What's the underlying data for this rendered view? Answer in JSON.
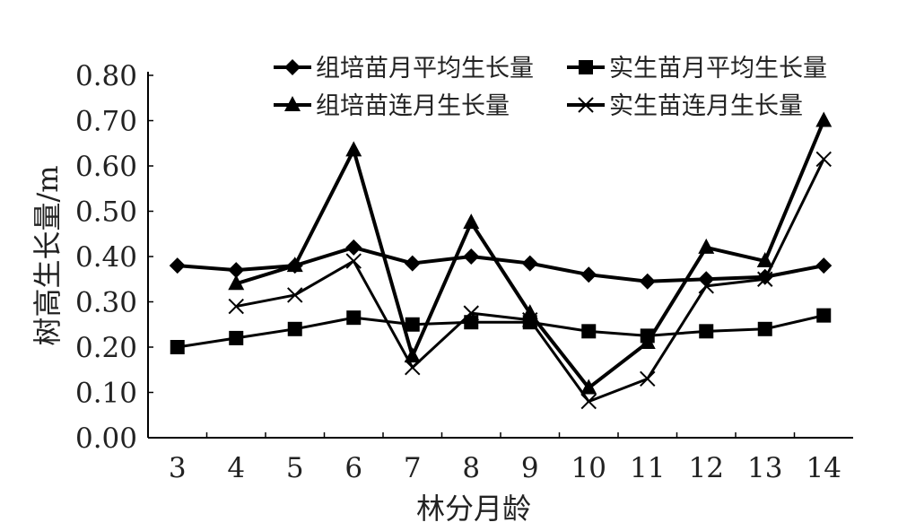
{
  "chart_data": {
    "type": "line",
    "title": "",
    "xlabel": "林分月龄",
    "ylabel": "树高生长量/m",
    "categories": [
      "3",
      "4",
      "5",
      "6",
      "7",
      "8",
      "9",
      "10",
      "11",
      "12",
      "13",
      "14"
    ],
    "ylim": [
      0,
      0.8
    ],
    "yticks": [
      "0.00",
      "0.10",
      "0.20",
      "0.30",
      "0.40",
      "0.50",
      "0.60",
      "0.70",
      "0.80"
    ],
    "grid": false,
    "legend_placement": "top",
    "series": [
      {
        "name": "组培苗月平均生长量",
        "marker": "diamond",
        "values": [
          0.38,
          0.37,
          0.38,
          0.42,
          0.385,
          0.4,
          0.385,
          0.36,
          0.345,
          0.35,
          0.355,
          0.38
        ]
      },
      {
        "name": "实生苗月平均生长量",
        "marker": "square",
        "values": [
          0.2,
          0.22,
          0.24,
          0.265,
          0.25,
          0.255,
          0.255,
          0.235,
          0.225,
          0.235,
          0.24,
          0.27
        ]
      },
      {
        "name": "组培苗连月生长量",
        "marker": "triangle",
        "values": [
          null,
          0.34,
          0.38,
          0.635,
          0.18,
          0.475,
          0.275,
          0.11,
          0.21,
          0.42,
          0.39,
          0.7
        ]
      },
      {
        "name": "实生苗连月生长量",
        "marker": "x",
        "values": [
          null,
          0.29,
          0.315,
          0.39,
          0.155,
          0.275,
          0.26,
          0.08,
          0.13,
          0.335,
          0.35,
          0.615
        ]
      }
    ],
    "color": "#000000"
  }
}
